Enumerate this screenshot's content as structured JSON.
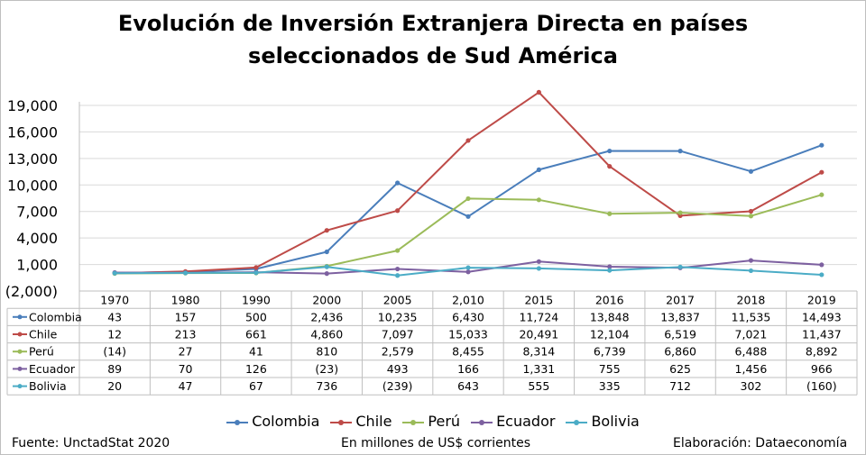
{
  "chart_data": {
    "type": "line",
    "title": [
      "Evolución de Inversión Extranjera Directa en países",
      "seleccionados de Sud América"
    ],
    "categories": [
      "1970",
      "1980",
      "1990",
      "2000",
      "2005",
      "2,010",
      "2015",
      "2016",
      "2017",
      "2018",
      "2019"
    ],
    "y_ticks": [
      "19,000",
      "16,000",
      "13,000",
      "10,000",
      "7,000",
      "4,000",
      "1,000",
      "(2,000)"
    ],
    "ylim": [
      -2000,
      19000
    ],
    "grid": true,
    "legend_position": "bottom",
    "series": [
      {
        "name": "Colombia",
        "color": "#4a7ebb",
        "values": [
          43,
          157,
          500,
          2436,
          10235,
          6430,
          11724,
          13848,
          13837,
          11535,
          14493
        ],
        "labels": [
          "43",
          "157",
          "500",
          "2,436",
          "10,235",
          "6,430",
          "11,724",
          "13,848",
          "13,837",
          "11,535",
          "14,493"
        ]
      },
      {
        "name": "Chile",
        "color": "#be4b48",
        "values": [
          12,
          213,
          661,
          4860,
          7097,
          15033,
          20491,
          12104,
          6519,
          7021,
          11437
        ],
        "labels": [
          "12",
          "213",
          "661",
          "4,860",
          "7,097",
          "15,033",
          "20,491",
          "12,104",
          "6,519",
          "7,021",
          "11,437"
        ]
      },
      {
        "name": "Perú",
        "color": "#9bbb59",
        "values": [
          -14,
          27,
          41,
          810,
          2579,
          8455,
          8314,
          6739,
          6860,
          6488,
          8892
        ],
        "labels": [
          "(14)",
          "27",
          "41",
          "810",
          "2,579",
          "8,455",
          "8,314",
          "6,739",
          "6,860",
          "6,488",
          "8,892"
        ]
      },
      {
        "name": "Ecuador",
        "color": "#7d60a0",
        "values": [
          89,
          70,
          126,
          -23,
          493,
          166,
          1331,
          755,
          625,
          1456,
          966
        ],
        "labels": [
          "89",
          "70",
          "126",
          "(23)",
          "493",
          "166",
          "1,331",
          "755",
          "625",
          "1,456",
          "966"
        ]
      },
      {
        "name": "Bolivia",
        "color": "#4bacc6",
        "values": [
          20,
          47,
          67,
          736,
          -239,
          643,
          555,
          335,
          712,
          302,
          -160
        ],
        "labels": [
          "20",
          "47",
          "67",
          "736",
          "(239)",
          "643",
          "555",
          "335",
          "712",
          "302",
          "(160)"
        ]
      }
    ]
  },
  "footer": {
    "source": "Fuente: UnctadStat 2020",
    "units": "En millones de US$ corrientes",
    "credit": "Elaboración: Dataeconomía"
  }
}
